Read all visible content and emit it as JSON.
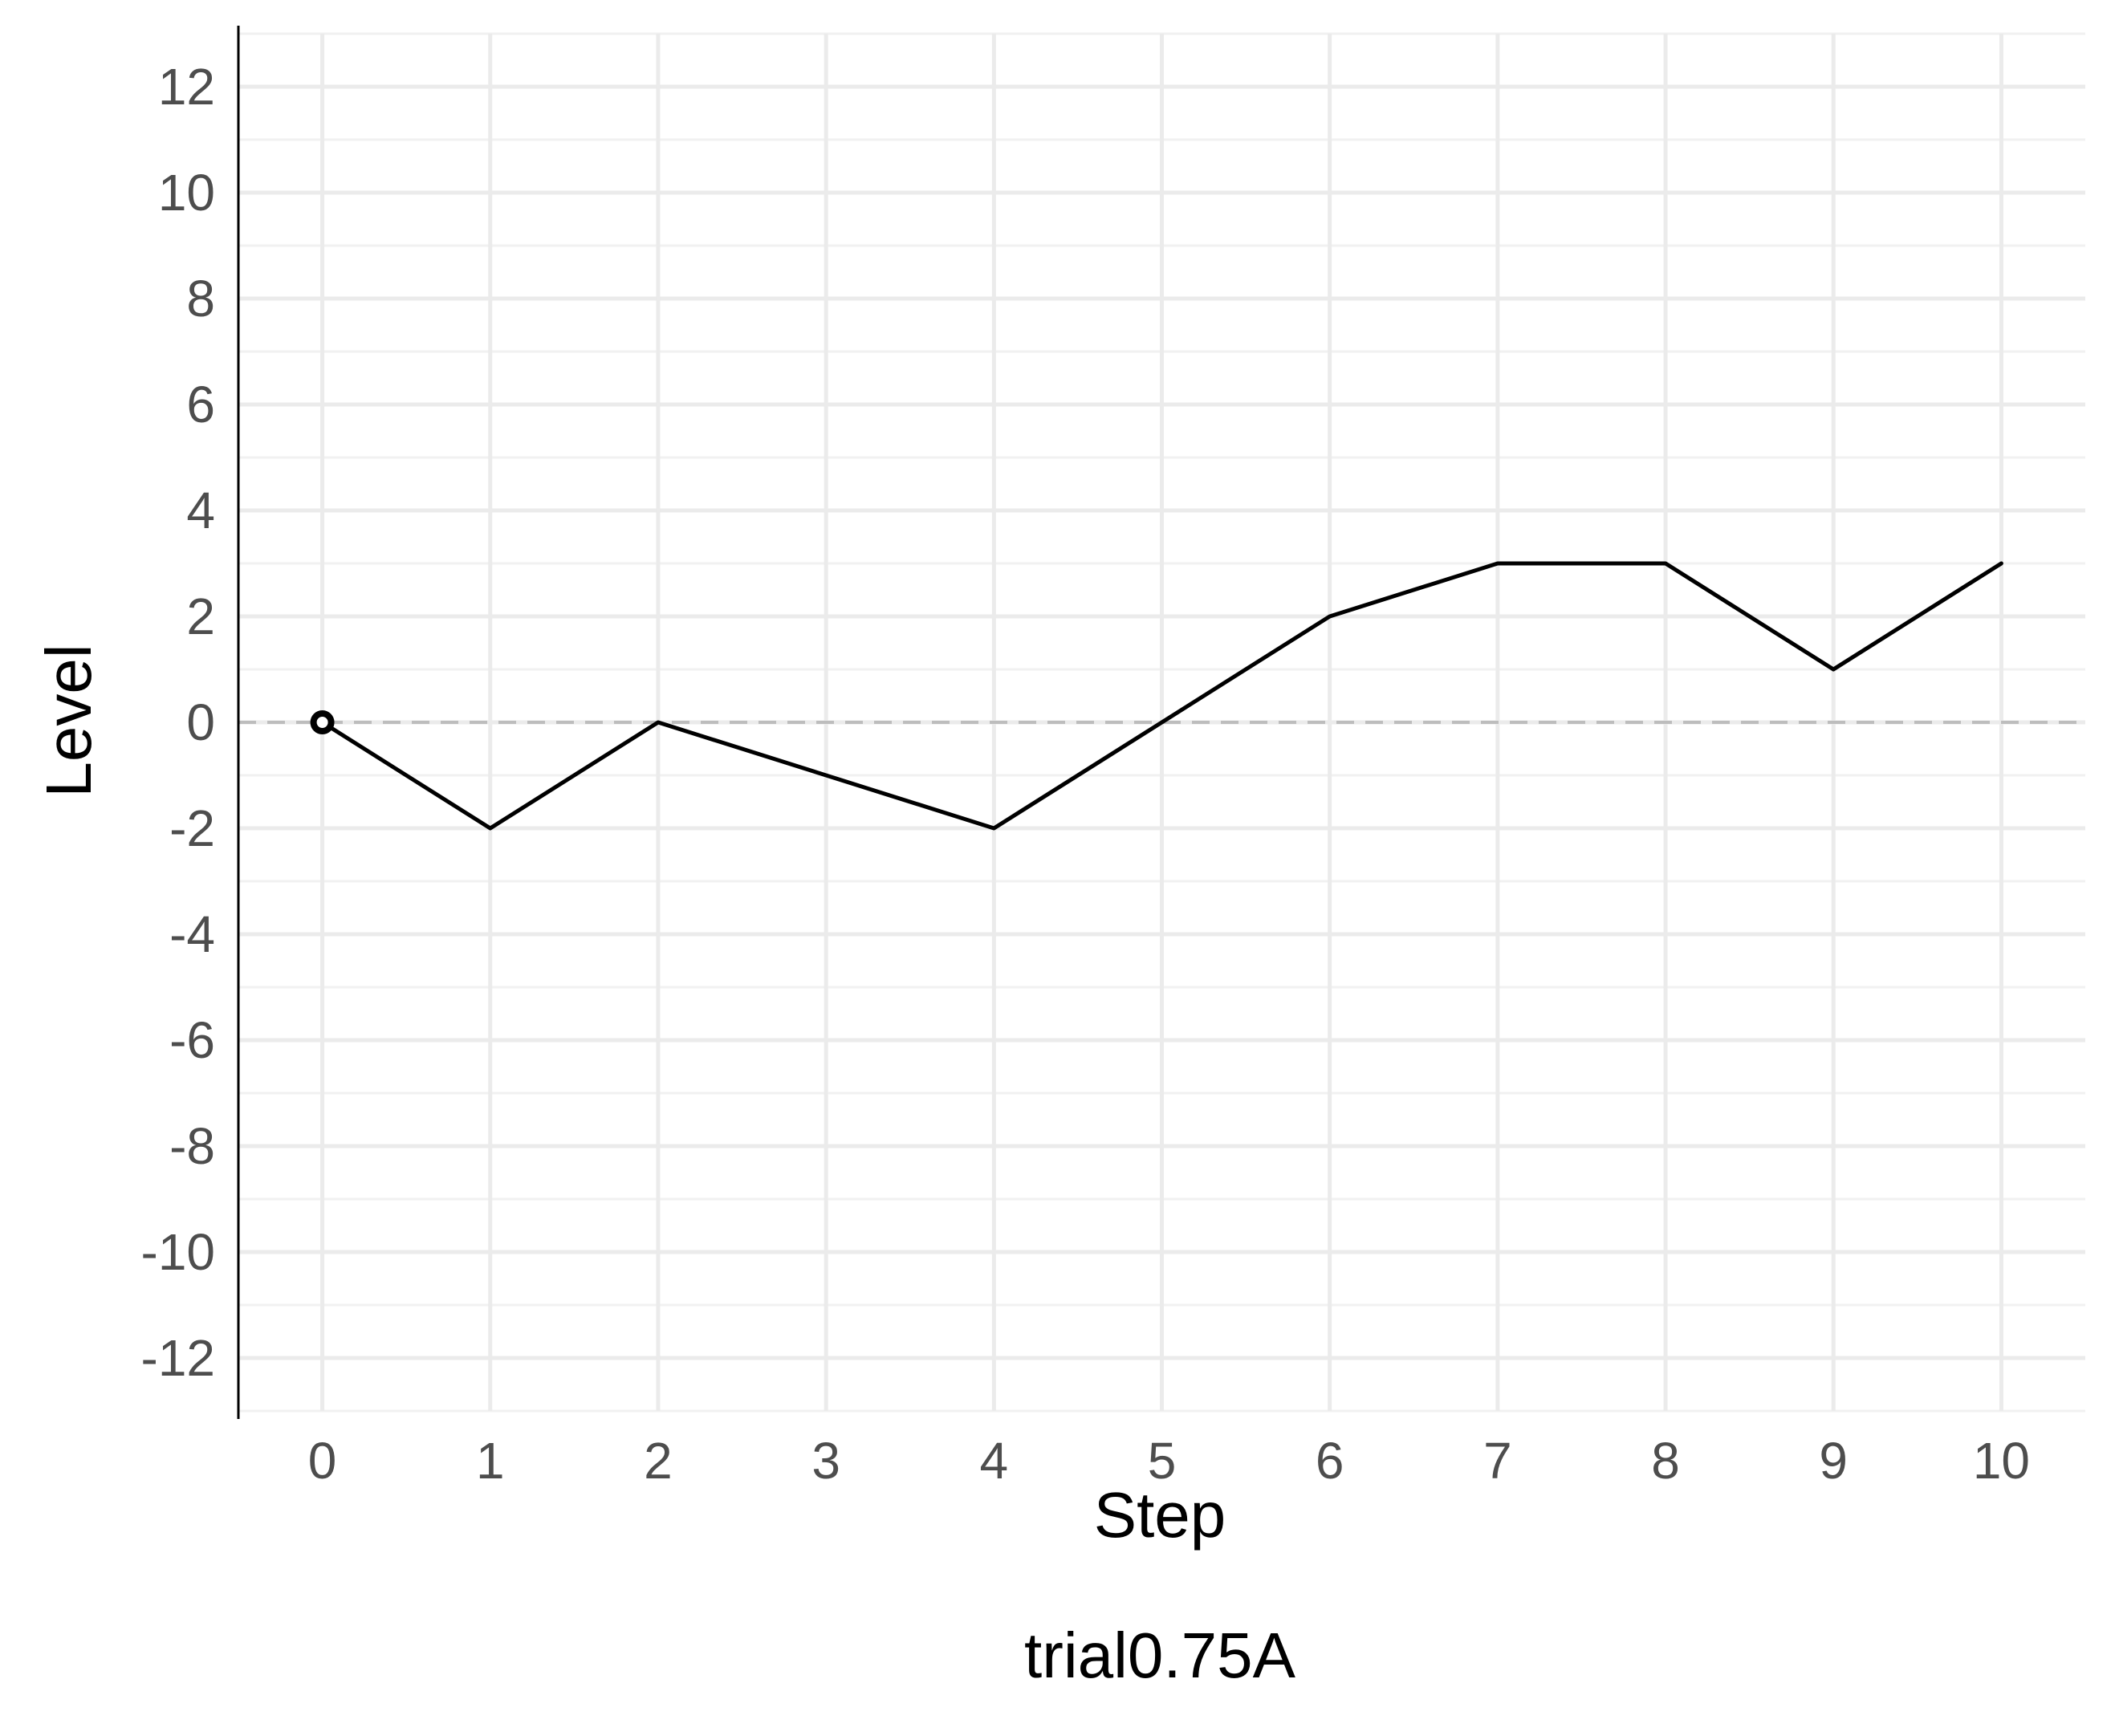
{
  "chart_data": {
    "type": "line",
    "title": "",
    "caption": "trial0.75A",
    "xlabel": "Step",
    "ylabel": "Level",
    "xlim": [
      -0.5,
      10.5
    ],
    "ylim": [
      -13,
      13
    ],
    "x_ticks": [
      0,
      1,
      2,
      3,
      4,
      5,
      6,
      7,
      8,
      9,
      10
    ],
    "x_tick_labels": [
      "0",
      "1",
      "2",
      "3",
      "4",
      "5",
      "6",
      "7",
      "8",
      "9",
      "10"
    ],
    "y_ticks": [
      12,
      10,
      8,
      6,
      4,
      2,
      0,
      -2,
      -4,
      -6,
      -8,
      -10,
      -12
    ],
    "y_tick_labels": [
      "12",
      "10",
      "8",
      "6",
      "4",
      "2",
      "0",
      "-2",
      "-4",
      "-6",
      "-8",
      "-10",
      "-12"
    ],
    "grid": true,
    "reference_line": {
      "y": 0,
      "style": "dashed",
      "color": "#bdbdbd"
    },
    "start_marker": {
      "x": 0,
      "y": 0
    },
    "series": [
      {
        "color": "#000000",
        "x": [
          0,
          1,
          2,
          3,
          4,
          5,
          6,
          7,
          8,
          9,
          10
        ],
        "y": [
          0,
          -2,
          0,
          -1,
          -2,
          0,
          2,
          3,
          3,
          1,
          3
        ]
      }
    ]
  }
}
